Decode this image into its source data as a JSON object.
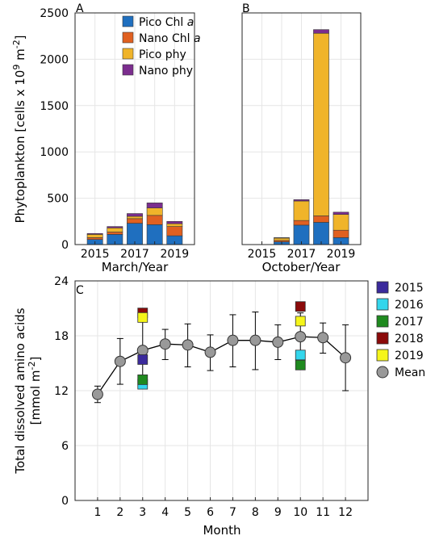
{
  "chart_data": [
    {
      "type": "bar",
      "stacked": true,
      "panel": "A",
      "xlabel": "March/Year",
      "ylabel": "Phytoplankton [cells x 10^9 m^-2]",
      "ylabel_parts": [
        "Phytoplankton [cells x 10",
        "9",
        " m",
        "-2",
        "]"
      ],
      "ylim": [
        0,
        2500
      ],
      "yticks": [
        "0",
        "500",
        "1000",
        "1500",
        "2000",
        "2500"
      ],
      "categories": [
        "2015",
        "2016",
        "2017",
        "2018",
        "2019"
      ],
      "xtick_labels": [
        "2015",
        "2017",
        "2019"
      ],
      "grid": true,
      "legend_position": "top-right",
      "series": [
        {
          "name": "Pico Chl a",
          "name_parts": [
            "Pico Chl ",
            "a"
          ],
          "color": "#1f6fbf",
          "values": [
            55,
            110,
            230,
            215,
            95
          ]
        },
        {
          "name": "Nano Chl a",
          "name_parts": [
            "Nano Chl ",
            "a"
          ],
          "color": "#e06020",
          "values": [
            20,
            25,
            50,
            100,
            100
          ]
        },
        {
          "name": "Pico phy",
          "color": "#f0b42a",
          "values": [
            35,
            45,
            25,
            80,
            30
          ]
        },
        {
          "name": "Nano phy",
          "color": "#7b2d8e",
          "values": [
            10,
            15,
            30,
            55,
            25
          ]
        }
      ]
    },
    {
      "type": "bar",
      "stacked": true,
      "panel": "B",
      "xlabel": "October/Year",
      "ylim": [
        0,
        2500
      ],
      "categories": [
        "2015",
        "2016",
        "2017",
        "2018",
        "2019"
      ],
      "xtick_labels": [
        "2015",
        "2017",
        "2019"
      ],
      "grid": true,
      "series": [
        {
          "name": "Pico Chl a",
          "color": "#1f6fbf",
          "values": [
            0,
            30,
            210,
            240,
            75
          ]
        },
        {
          "name": "Nano Chl a",
          "color": "#e06020",
          "values": [
            0,
            15,
            50,
            70,
            80
          ]
        },
        {
          "name": "Pico phy",
          "color": "#f0b42a",
          "values": [
            0,
            25,
            210,
            1970,
            170
          ]
        },
        {
          "name": "Nano phy",
          "color": "#7b2d8e",
          "values": [
            0,
            5,
            15,
            40,
            25
          ]
        }
      ]
    },
    {
      "type": "scatter",
      "panel": "C",
      "xlabel": "Month",
      "ylabel": "Total dissolved amino acids [mmol m^-2]",
      "ylabel_lines": [
        "Total dissolved amino acids",
        "[mmol m",
        "-2",
        "]"
      ],
      "xlim": [
        0,
        13
      ],
      "ylim": [
        0,
        24
      ],
      "xticks": [
        "1",
        "2",
        "3",
        "4",
        "5",
        "6",
        "7",
        "8",
        "9",
        "10",
        "11",
        "12"
      ],
      "yticks": [
        "0",
        "6",
        "12",
        "18",
        "24"
      ],
      "grid": true,
      "legend_position": "right",
      "mean": {
        "name": "Mean",
        "color": "#999999",
        "x": [
          1,
          2,
          3,
          4,
          5,
          6,
          7,
          8,
          9,
          10,
          11,
          12
        ],
        "y": [
          11.6,
          15.2,
          16.4,
          17.1,
          17.0,
          16.2,
          17.5,
          17.5,
          17.3,
          17.9,
          17.8,
          15.6
        ],
        "err_low": [
          10.7,
          12.7,
          12.4,
          15.4,
          14.6,
          14.2,
          14.6,
          14.3,
          15.4,
          15.1,
          16.1,
          12.0
        ],
        "err_high": [
          12.5,
          17.7,
          20.1,
          18.7,
          19.3,
          18.1,
          20.3,
          20.6,
          19.2,
          20.5,
          19.4,
          19.2
        ]
      },
      "years": [
        {
          "name": "2015",
          "color": "#3b2a9c",
          "x": [
            3
          ],
          "y": [
            15.4
          ]
        },
        {
          "name": "2016",
          "color": "#33d6ec",
          "x": [
            3,
            10
          ],
          "y": [
            12.7,
            15.9
          ]
        },
        {
          "name": "2017",
          "color": "#1f8a1f",
          "x": [
            3,
            10
          ],
          "y": [
            13.2,
            14.8
          ]
        },
        {
          "name": "2018",
          "color": "#8b0a0a",
          "x": [
            3,
            10
          ],
          "y": [
            20.5,
            21.2
          ]
        },
        {
          "name": "2019",
          "color": "#f5f51a",
          "x": [
            3,
            10
          ],
          "y": [
            20.0,
            19.6
          ]
        }
      ]
    }
  ]
}
